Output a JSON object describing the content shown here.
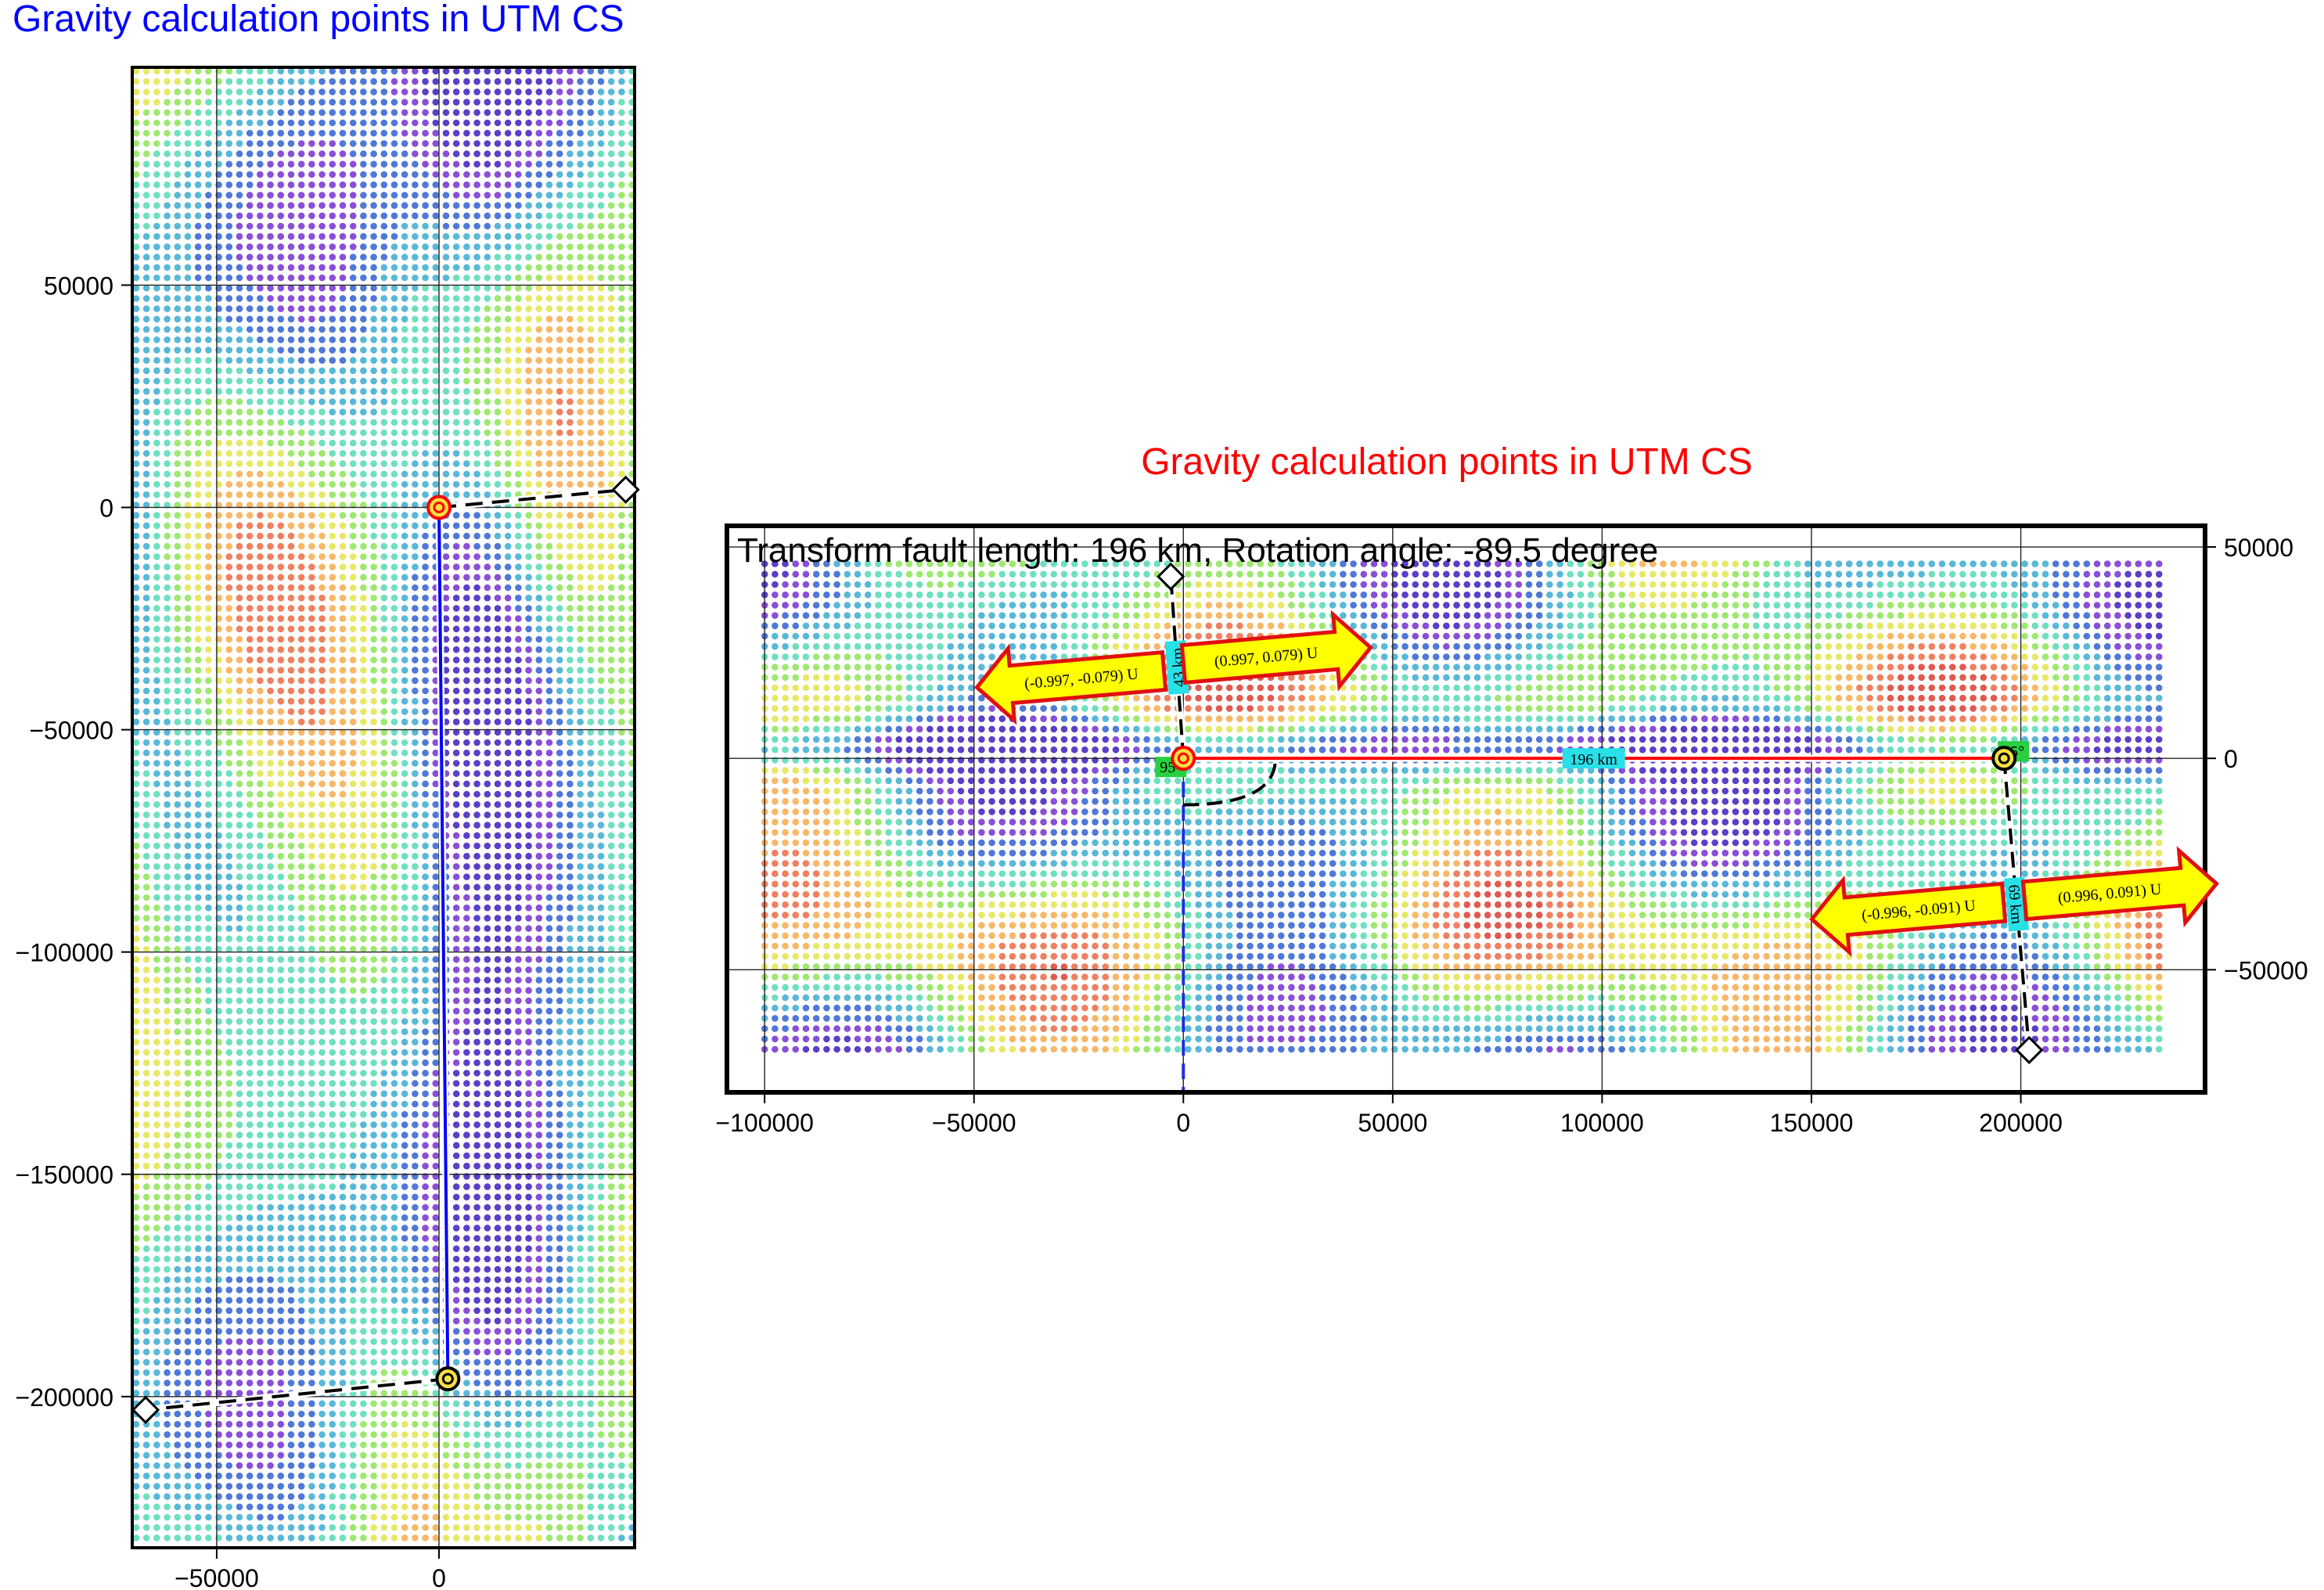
{
  "chart_data": [
    {
      "type": "scatter",
      "title": "Gravity calculation points in UTM CS",
      "title_color": "#0000ff",
      "xlim": [
        -69000,
        44000
      ],
      "ylim": [
        -234000,
        99000
      ],
      "xticks": [
        -50000,
        0
      ],
      "xtick_labels": [
        "−50000",
        "0"
      ],
      "yticks": [
        50000,
        0,
        -50000,
        -100000,
        -150000,
        -200000
      ],
      "ytick_labels": [
        "50000",
        "0",
        "−50000",
        "−100000",
        "−150000",
        "−200000"
      ],
      "grid": true,
      "fault_line": {
        "x": [
          0,
          2000
        ],
        "y": [
          0,
          -196000
        ],
        "color": "#0000ff"
      },
      "start_marker": {
        "x": 0,
        "y": 0,
        "color": "#ff0000"
      },
      "end_marker": {
        "x": 2000,
        "y": -196000,
        "color": "#000000"
      },
      "ridge_segments": [
        {
          "x": [
            0,
            42000
          ],
          "y": [
            0,
            4000
          ]
        },
        {
          "x": [
            2000,
            -66000
          ],
          "y": [
            -196000,
            -203000
          ]
        }
      ],
      "diamonds": [
        {
          "x": 42000,
          "y": 4000
        },
        {
          "x": -66000,
          "y": -203000
        }
      ]
    },
    {
      "type": "scatter",
      "title": "Gravity calculation points in UTM CS",
      "title_color": "#ff0000",
      "subtitle": "Transform fault length: 196 km,  Rotation angle: -89.5 degree",
      "xlim": [
        -109000,
        244000
      ],
      "ylim": [
        -79000,
        55000
      ],
      "xticks": [
        -100000,
        -50000,
        0,
        50000,
        100000,
        150000,
        200000
      ],
      "xtick_labels": [
        "−100000",
        "−50000",
        "0",
        "50000",
        "100000",
        "150000",
        "200000"
      ],
      "yticks": [
        50000,
        0,
        -50000
      ],
      "ytick_labels": [
        "50000",
        "0",
        "−50000"
      ],
      "grid": true,
      "fault": {
        "x": [
          0,
          196000
        ],
        "y": [
          0,
          0
        ],
        "label": "196 km",
        "color": "#ff0000"
      },
      "ridges": [
        {
          "x": [
            0,
            -3000
          ],
          "y": [
            0,
            43000
          ],
          "label": "43 km"
        },
        {
          "x": [
            196000,
            202000
          ],
          "y": [
            0,
            -69000
          ],
          "label": "69 km"
        }
      ],
      "angles": [
        {
          "x": 0,
          "y": 0,
          "label": "95°"
        },
        {
          "x": 196000,
          "y": 0,
          "label": "95°"
        }
      ],
      "diamonds": [
        {
          "x": -3000,
          "y": 43000
        },
        {
          "x": 202000,
          "y": -69000
        }
      ],
      "arrows": [
        {
          "label": "(-0.997, -0.079) U"
        },
        {
          "label": "(0.997, 0.079) U"
        },
        {
          "label": "(-0.996, -0.091) U"
        },
        {
          "label": "(0.996, 0.091) U"
        }
      ]
    }
  ]
}
